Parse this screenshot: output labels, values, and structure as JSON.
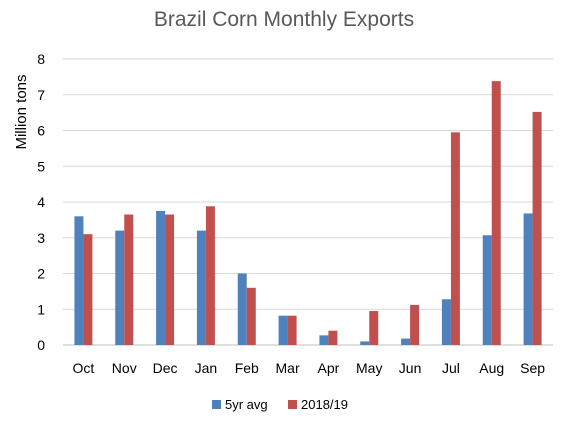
{
  "chart_data": {
    "type": "bar",
    "title": "Brazil Corn Monthly Exports",
    "ylabel": "Million tons",
    "xlabel": "",
    "ylim": [
      0,
      8
    ],
    "yticks": [
      0,
      1,
      2,
      3,
      4,
      5,
      6,
      7,
      8
    ],
    "grid": true,
    "legend_position": "bottom",
    "categories": [
      "Oct",
      "Nov",
      "Dec",
      "Jan",
      "Feb",
      "Mar",
      "Apr",
      "May",
      "Jun",
      "Jul",
      "Aug",
      "Sep"
    ],
    "series": [
      {
        "name": "5yr avg",
        "color": "#4f81bd",
        "values": [
          3.6,
          3.2,
          3.75,
          3.2,
          2.0,
          0.82,
          0.27,
          0.1,
          0.18,
          1.28,
          3.07,
          3.68
        ]
      },
      {
        "name": "2018/19",
        "color": "#c0504d",
        "values": [
          3.1,
          3.65,
          3.65,
          3.88,
          1.6,
          0.82,
          0.4,
          0.95,
          1.12,
          5.95,
          7.38,
          6.52
        ]
      }
    ]
  }
}
